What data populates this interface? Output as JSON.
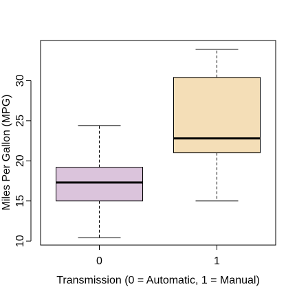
{
  "chart_data": {
    "type": "boxplot",
    "title": "",
    "xlabel": "Transmission (0 = Automatic, 1 = Manual)",
    "ylabel": "Miles Per Gallon (MPG)",
    "categories": [
      "0",
      "1"
    ],
    "ylim": [
      9.5,
      35
    ],
    "yticks": [
      10,
      15,
      20,
      25,
      30
    ],
    "ytick_labels": [
      "10",
      "15",
      "20",
      "25",
      "30"
    ],
    "grid": false,
    "boxes": [
      {
        "category": "0",
        "min": 10.4,
        "q1": 15.0,
        "median": 17.3,
        "q3": 19.2,
        "max": 24.4,
        "fill": "#dbc4dc"
      },
      {
        "category": "1",
        "min": 15.0,
        "q1": 21.0,
        "median": 22.8,
        "q3": 30.4,
        "max": 33.9,
        "fill": "#f4deb7"
      }
    ]
  }
}
